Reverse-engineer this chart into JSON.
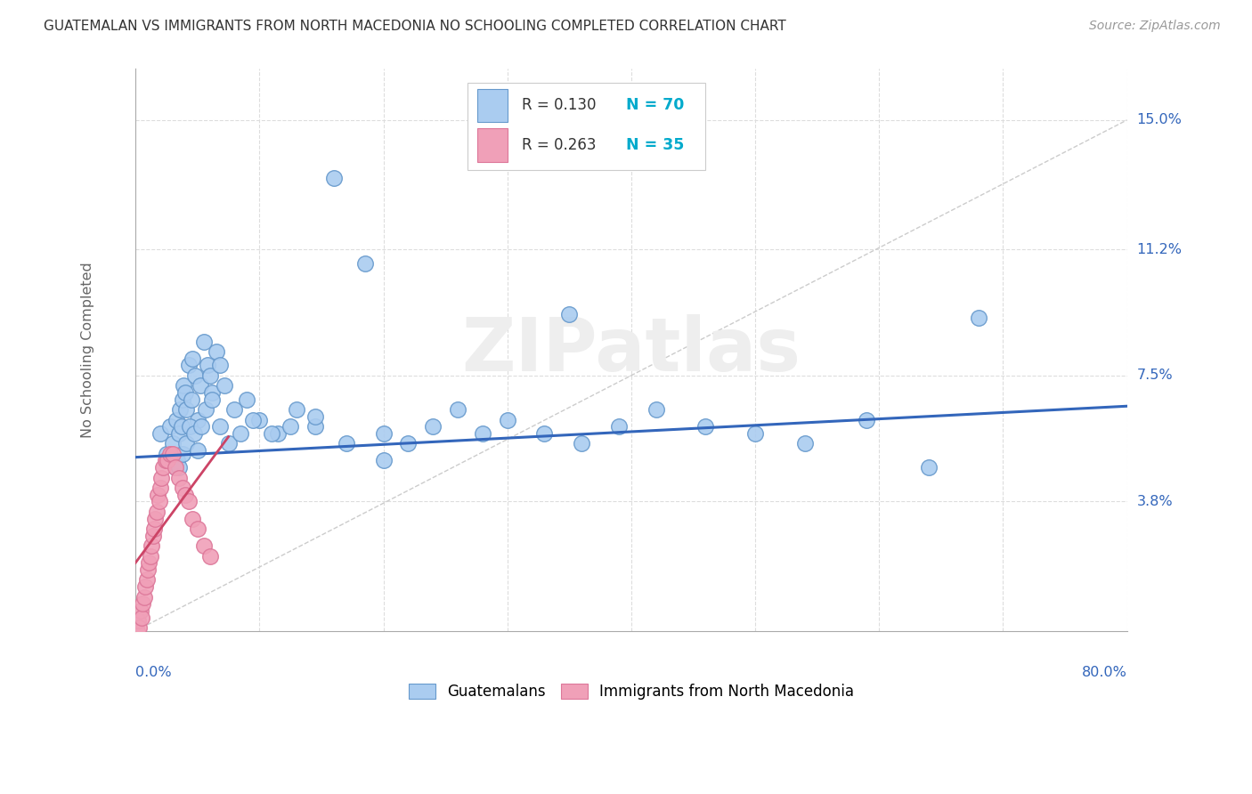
{
  "title": "GUATEMALAN VS IMMIGRANTS FROM NORTH MACEDONIA NO SCHOOLING COMPLETED CORRELATION CHART",
  "source": "Source: ZipAtlas.com",
  "ylabel": "No Schooling Completed",
  "xlim": [
    0.0,
    0.8
  ],
  "ylim": [
    0.0,
    0.165
  ],
  "color_blue": "#aaccf0",
  "color_blue_edge": "#6699cc",
  "color_blue_line": "#3366bb",
  "color_pink": "#f0a0b8",
  "color_pink_edge": "#dd7799",
  "color_pink_line": "#cc4466",
  "color_grid": "#dddddd",
  "color_ref_line": "#cccccc",
  "background": "#ffffff",
  "ytick_vals": [
    0.038,
    0.075,
    0.112,
    0.15
  ],
  "ytick_labels": [
    "3.8%",
    "7.5%",
    "11.2%",
    "15.0%"
  ],
  "xtick_vals": [
    0.0,
    0.1,
    0.2,
    0.3,
    0.4,
    0.5,
    0.6,
    0.7,
    0.8
  ],
  "legend_r_blue": "R = 0.130",
  "legend_n_blue": "N = 70",
  "legend_r_pink": "R = 0.263",
  "legend_n_pink": "N = 35",
  "legend_color_r": "#333333",
  "legend_color_n": "#00aacc",
  "blue_trend_x": [
    0.0,
    0.8
  ],
  "blue_trend_y": [
    0.051,
    0.066
  ],
  "pink_trend_x": [
    0.0,
    0.075
  ],
  "pink_trend_y": [
    0.02,
    0.057
  ],
  "ref_line_x": [
    0.0,
    0.8
  ],
  "ref_line_y": [
    0.0,
    0.15
  ],
  "blue_x": [
    0.02,
    0.025,
    0.028,
    0.03,
    0.032,
    0.033,
    0.034,
    0.035,
    0.036,
    0.037,
    0.038,
    0.039,
    0.04,
    0.041,
    0.043,
    0.045,
    0.046,
    0.048,
    0.05,
    0.052,
    0.055,
    0.058,
    0.06,
    0.062,
    0.065,
    0.068,
    0.072,
    0.08,
    0.09,
    0.1,
    0.115,
    0.13,
    0.145,
    0.16,
    0.185,
    0.2,
    0.22,
    0.24,
    0.26,
    0.28,
    0.3,
    0.33,
    0.36,
    0.39,
    0.42,
    0.46,
    0.5,
    0.54,
    0.59,
    0.64,
    0.035,
    0.038,
    0.041,
    0.044,
    0.047,
    0.05,
    0.053,
    0.057,
    0.062,
    0.068,
    0.075,
    0.085,
    0.095,
    0.11,
    0.125,
    0.145,
    0.17,
    0.2,
    0.35,
    0.68
  ],
  "blue_y": [
    0.058,
    0.052,
    0.06,
    0.055,
    0.048,
    0.062,
    0.05,
    0.058,
    0.065,
    0.06,
    0.068,
    0.072,
    0.07,
    0.065,
    0.078,
    0.068,
    0.08,
    0.075,
    0.062,
    0.072,
    0.085,
    0.078,
    0.075,
    0.07,
    0.082,
    0.078,
    0.072,
    0.065,
    0.068,
    0.062,
    0.058,
    0.065,
    0.06,
    0.133,
    0.108,
    0.058,
    0.055,
    0.06,
    0.065,
    0.058,
    0.062,
    0.058,
    0.055,
    0.06,
    0.065,
    0.06,
    0.058,
    0.055,
    0.062,
    0.048,
    0.048,
    0.052,
    0.055,
    0.06,
    0.058,
    0.053,
    0.06,
    0.065,
    0.068,
    0.06,
    0.055,
    0.058,
    0.062,
    0.058,
    0.06,
    0.063,
    0.055,
    0.05,
    0.093,
    0.092
  ],
  "pink_x": [
    0.001,
    0.002,
    0.003,
    0.004,
    0.005,
    0.006,
    0.007,
    0.008,
    0.009,
    0.01,
    0.011,
    0.012,
    0.013,
    0.014,
    0.015,
    0.016,
    0.017,
    0.018,
    0.019,
    0.02,
    0.021,
    0.022,
    0.024,
    0.026,
    0.028,
    0.03,
    0.032,
    0.035,
    0.038,
    0.04,
    0.043,
    0.046,
    0.05,
    0.055,
    0.06
  ],
  "pink_y": [
    0.0,
    0.003,
    0.001,
    0.006,
    0.004,
    0.008,
    0.01,
    0.013,
    0.015,
    0.018,
    0.02,
    0.022,
    0.025,
    0.028,
    0.03,
    0.033,
    0.035,
    0.04,
    0.038,
    0.042,
    0.045,
    0.048,
    0.05,
    0.05,
    0.052,
    0.052,
    0.048,
    0.045,
    0.042,
    0.04,
    0.038,
    0.033,
    0.03,
    0.025,
    0.022
  ]
}
